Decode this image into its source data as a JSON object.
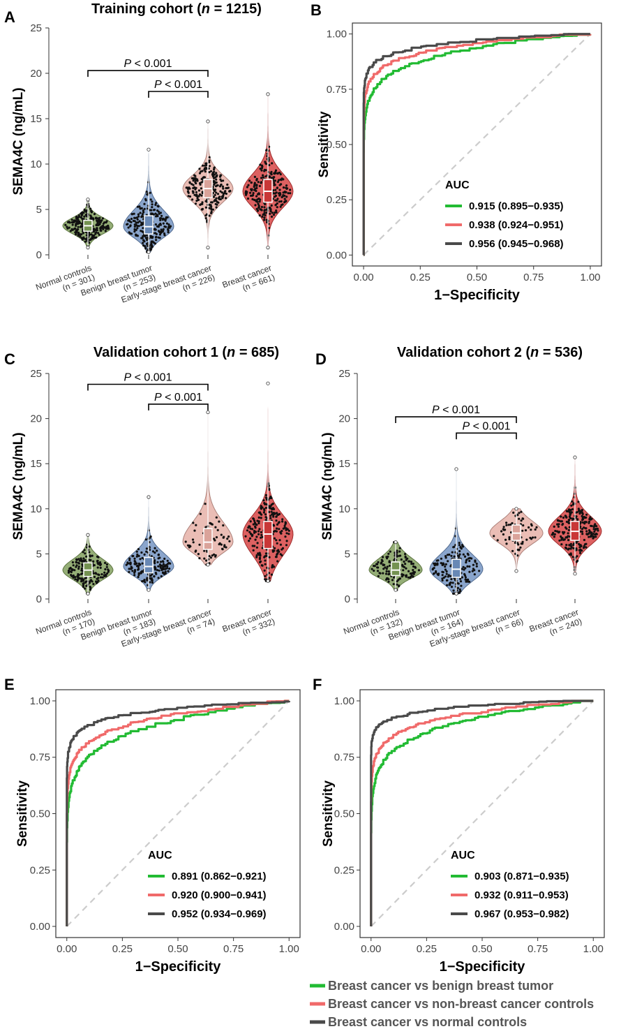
{
  "panels": {
    "A": {
      "letter": "A",
      "title_pre": "Training cohort (",
      "title_n": "n",
      "title_post": " = 1215)"
    },
    "B": {
      "letter": "B"
    },
    "C": {
      "letter": "C",
      "title_pre": "Validation cohort 1 (",
      "title_n": "n",
      "title_post": " = 685)"
    },
    "D": {
      "letter": "D",
      "title_pre": "Validation cohort 2 (",
      "title_n": "n",
      "title_post": " = 536)"
    },
    "E": {
      "letter": "E"
    },
    "F": {
      "letter": "F"
    }
  },
  "legend": {
    "items": [
      {
        "label": "Breast cancer vs benign breast tumor",
        "color": "#22bb33"
      },
      {
        "label": "Breast cancer vs non-breast cancer controls",
        "color": "#f06a6a"
      },
      {
        "label": "Breast cancer vs normal controls",
        "color": "#4a4a4a"
      }
    ]
  },
  "chart_data": [
    {
      "id": "A",
      "type": "violin",
      "ylabel": "SEMA4C (ng/mL)",
      "ylim": [
        0,
        25
      ],
      "yticks": [
        0,
        5,
        10,
        15,
        20,
        25
      ],
      "categories": [
        {
          "name": "Normal controls",
          "n_label": "(n = 301)",
          "n": 301,
          "median": 3.2,
          "q1": 2.6,
          "q3": 3.8,
          "min": 0.8,
          "max": 6.1,
          "color": "#7a9a55"
        },
        {
          "name": "Benign breast tumor",
          "n_label": "(n = 253)",
          "n": 253,
          "median": 3.1,
          "q1": 2.3,
          "q3": 4.3,
          "min": 0.3,
          "max": 11.6,
          "color": "#6d8fbf"
        },
        {
          "name": "Early-stage breast cancer",
          "n_label": "(n = 226)",
          "n": 226,
          "median": 7.3,
          "q1": 6.3,
          "q3": 8.3,
          "min": 0.8,
          "max": 14.7,
          "color": "#e5aca2"
        },
        {
          "name": "Breast cancer",
          "n_label": "(n = 661)",
          "n": 661,
          "median": 7.0,
          "q1": 5.8,
          "q3": 8.3,
          "min": 0.8,
          "max": 17.7,
          "color": "#d43a3a"
        }
      ],
      "brackets": [
        {
          "from": 0,
          "to": 2,
          "y": 20.3,
          "p_italic": "P",
          "p_text": " < 0.001"
        },
        {
          "from": 1,
          "to": 2,
          "y": 18.0,
          "p_italic": "P",
          "p_text": " < 0.001"
        }
      ]
    },
    {
      "id": "B",
      "type": "line",
      "subtype": "roc",
      "xlabel": "1−Specificity",
      "ylabel": "Sensitivity",
      "xlim": [
        0,
        1
      ],
      "ylim": [
        0,
        1
      ],
      "ticks": [
        "0.00",
        "0.25",
        "0.50",
        "0.75",
        "1.00"
      ],
      "legend_title": "AUC",
      "series": [
        {
          "label": "0.915 (0.895−0.935)",
          "color": "#22bb33",
          "auc": 0.915
        },
        {
          "label": "0.938 (0.924−0.951)",
          "color": "#f06a6a",
          "auc": 0.938
        },
        {
          "label": "0.956 (0.945−0.968)",
          "color": "#4a4a4a",
          "auc": 0.956
        }
      ]
    },
    {
      "id": "C",
      "type": "violin",
      "ylabel": "SEMA4C (ng/mL)",
      "ylim": [
        0,
        25
      ],
      "yticks": [
        0,
        5,
        10,
        15,
        20,
        25
      ],
      "categories": [
        {
          "name": "Normal controls",
          "n_label": "(n = 170)",
          "n": 170,
          "median": 3.2,
          "q1": 2.5,
          "q3": 4.0,
          "min": 0.6,
          "max": 7.1,
          "color": "#7a9a55"
        },
        {
          "name": "Benign breast tumor",
          "n_label": "(n = 183)",
          "n": 183,
          "median": 3.6,
          "q1": 2.9,
          "q3": 4.6,
          "min": 1.0,
          "max": 11.3,
          "color": "#6d8fbf"
        },
        {
          "name": "Early-stage breast cancer",
          "n_label": "(n = 74)",
          "n": 74,
          "median": 6.3,
          "q1": 5.5,
          "q3": 7.8,
          "min": 3.8,
          "max": 20.7,
          "color": "#e5aca2"
        },
        {
          "name": "Breast cancer",
          "n_label": "(n = 332)",
          "n": 332,
          "median": 7.2,
          "q1": 5.6,
          "q3": 8.6,
          "min": 2.0,
          "max": 23.9,
          "color": "#d43a3a"
        }
      ],
      "brackets": [
        {
          "from": 0,
          "to": 2,
          "y": 23.8,
          "p_italic": "P",
          "p_text": " < 0.001"
        },
        {
          "from": 1,
          "to": 2,
          "y": 21.6,
          "p_italic": "P",
          "p_text": " < 0.001"
        }
      ]
    },
    {
      "id": "D",
      "type": "violin",
      "ylabel": "SEMA4C (ng/mL)",
      "ylim": [
        0,
        25
      ],
      "yticks": [
        0,
        5,
        10,
        15,
        20,
        25
      ],
      "categories": [
        {
          "name": "Normal controls",
          "n_label": "(n = 132)",
          "n": 132,
          "median": 3.2,
          "q1": 2.6,
          "q3": 4.1,
          "min": 1.0,
          "max": 6.3,
          "color": "#7a9a55"
        },
        {
          "name": "Benign breast tumor",
          "n_label": "(n = 164)",
          "n": 164,
          "median": 3.3,
          "q1": 2.4,
          "q3": 4.4,
          "min": 0.6,
          "max": 14.4,
          "color": "#6d8fbf"
        },
        {
          "name": "Early-stage breast cancer",
          "n_label": "(n = 66)",
          "n": 66,
          "median": 7.3,
          "q1": 6.5,
          "q3": 8.2,
          "min": 3.1,
          "max": 10.0,
          "color": "#e5aca2"
        },
        {
          "name": "Breast cancer",
          "n_label": "(n = 240)",
          "n": 240,
          "median": 7.5,
          "q1": 6.5,
          "q3": 8.6,
          "min": 2.8,
          "max": 15.7,
          "color": "#d43a3a"
        }
      ],
      "brackets": [
        {
          "from": 0,
          "to": 2,
          "y": 20.2,
          "p_italic": "P",
          "p_text": " < 0.001"
        },
        {
          "from": 1,
          "to": 2,
          "y": 18.4,
          "p_italic": "P",
          "p_text": " < 0.001"
        }
      ]
    },
    {
      "id": "E",
      "type": "line",
      "subtype": "roc",
      "xlabel": "1−Specificity",
      "ylabel": "Sensitivity",
      "xlim": [
        0,
        1
      ],
      "ylim": [
        0,
        1
      ],
      "ticks": [
        "0.00",
        "0.25",
        "0.50",
        "0.75",
        "1.00"
      ],
      "legend_title": "AUC",
      "series": [
        {
          "label": "0.891 (0.862−0.921)",
          "color": "#22bb33",
          "auc": 0.891
        },
        {
          "label": "0.920 (0.900−0.941)",
          "color": "#f06a6a",
          "auc": 0.92
        },
        {
          "label": "0.952 (0.934−0.969)",
          "color": "#4a4a4a",
          "auc": 0.952
        }
      ]
    },
    {
      "id": "F",
      "type": "line",
      "subtype": "roc",
      "xlabel": "1−Specificity",
      "ylabel": "Sensitivity",
      "xlim": [
        0,
        1
      ],
      "ylim": [
        0,
        1
      ],
      "ticks": [
        "0.00",
        "0.25",
        "0.50",
        "0.75",
        "1.00"
      ],
      "legend_title": "AUC",
      "series": [
        {
          "label": "0.903 (0.871−0.935)",
          "color": "#22bb33",
          "auc": 0.903
        },
        {
          "label": "0.932 (0.911−0.953)",
          "color": "#f06a6a",
          "auc": 0.932
        },
        {
          "label": "0.967 (0.953−0.982)",
          "color": "#4a4a4a",
          "auc": 0.967
        }
      ]
    }
  ]
}
